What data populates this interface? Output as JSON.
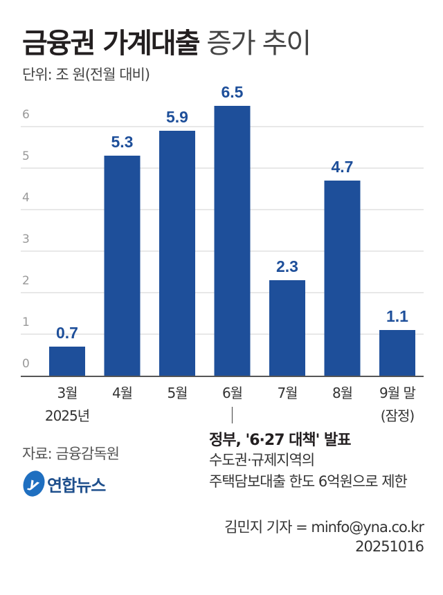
{
  "title_bold": "금융권 가계대출",
  "title_light": "증가 추이",
  "unit": "단위: 조 원(전월 대비)",
  "source": "자료: 금융감독원",
  "logo_text": "연합뉴스",
  "annotation": {
    "heading": "정부, '6·27 대책' 발표",
    "line1": "수도권·규제지역의",
    "line2": "주택담보대출 한도 6억원으로 제한"
  },
  "credit": {
    "author": "김민지 기자 = minfo@yna.co.kr",
    "date": "20251016"
  },
  "chart_data": {
    "type": "bar",
    "categories": [
      "3월",
      "4월",
      "5월",
      "6월",
      "7월",
      "8월",
      "9월 말"
    ],
    "category_sublabels": [
      "2025년",
      "",
      "",
      "",
      "",
      "",
      "(잠정)"
    ],
    "values": [
      0.7,
      5.3,
      5.9,
      6.5,
      2.3,
      4.7,
      1.1
    ],
    "data_labels": [
      "0.7",
      "5.3",
      "5.9",
      "6.5",
      "2.3",
      "4.7",
      "1.1"
    ],
    "yticks": [
      0,
      1,
      2,
      3,
      4,
      5,
      6
    ],
    "ylim": [
      0,
      6.5
    ],
    "grid": true,
    "bar_color": "#1e4f9a",
    "label_color": "#1e4f9a"
  }
}
